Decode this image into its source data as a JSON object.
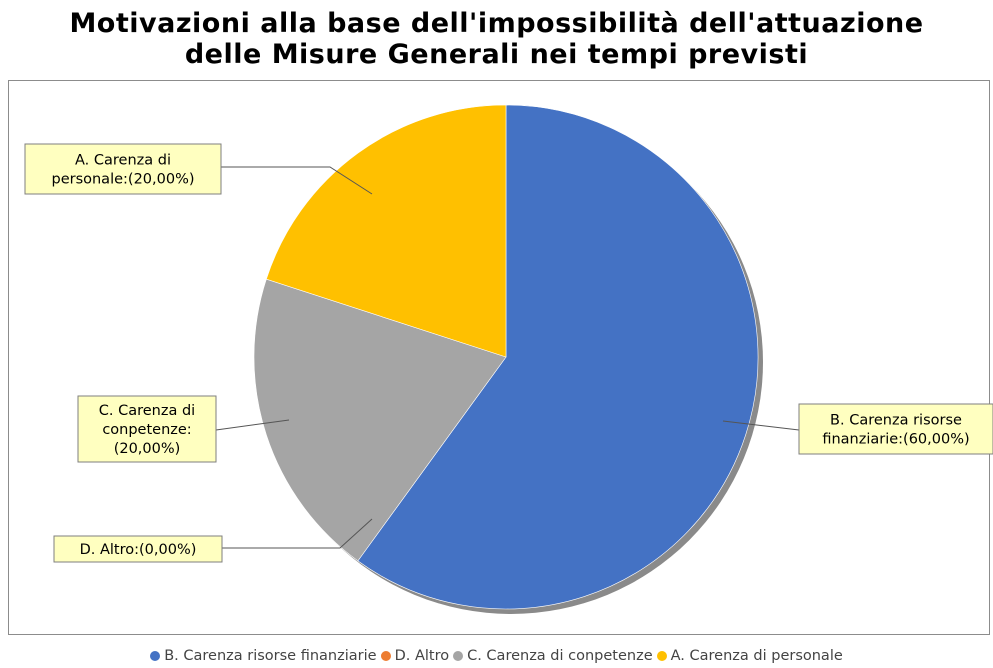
{
  "chart_data": {
    "type": "pie",
    "title_lines": [
      "Motivazioni alla base dell'impossibilità dell'attuazione",
      "delle Misure Generali nei tempi previsti"
    ],
    "slices": [
      {
        "label": "B. Carenza risorse finanziarie",
        "value": 60,
        "color": "#4472c4",
        "callout_lines": [
          "B. Carenza risorse",
          "finanziarie:(60,00%)"
        ]
      },
      {
        "label": "D. Altro",
        "value": 0,
        "color": "#ed7d31",
        "callout_lines": [
          "D. Altro:(0,00%)"
        ]
      },
      {
        "label": "C. Carenza di conpetenze",
        "value": 20,
        "color": "#a5a5a5",
        "callout_lines": [
          "C. Carenza di",
          "conpetenze:",
          "(20,00%)"
        ]
      },
      {
        "label": "A. Carenza di personale",
        "value": 20,
        "color": "#ffc000",
        "callout_lines": [
          "A. Carenza di",
          "personale:(20,00%)"
        ]
      }
    ],
    "legend_position": "bottom"
  }
}
